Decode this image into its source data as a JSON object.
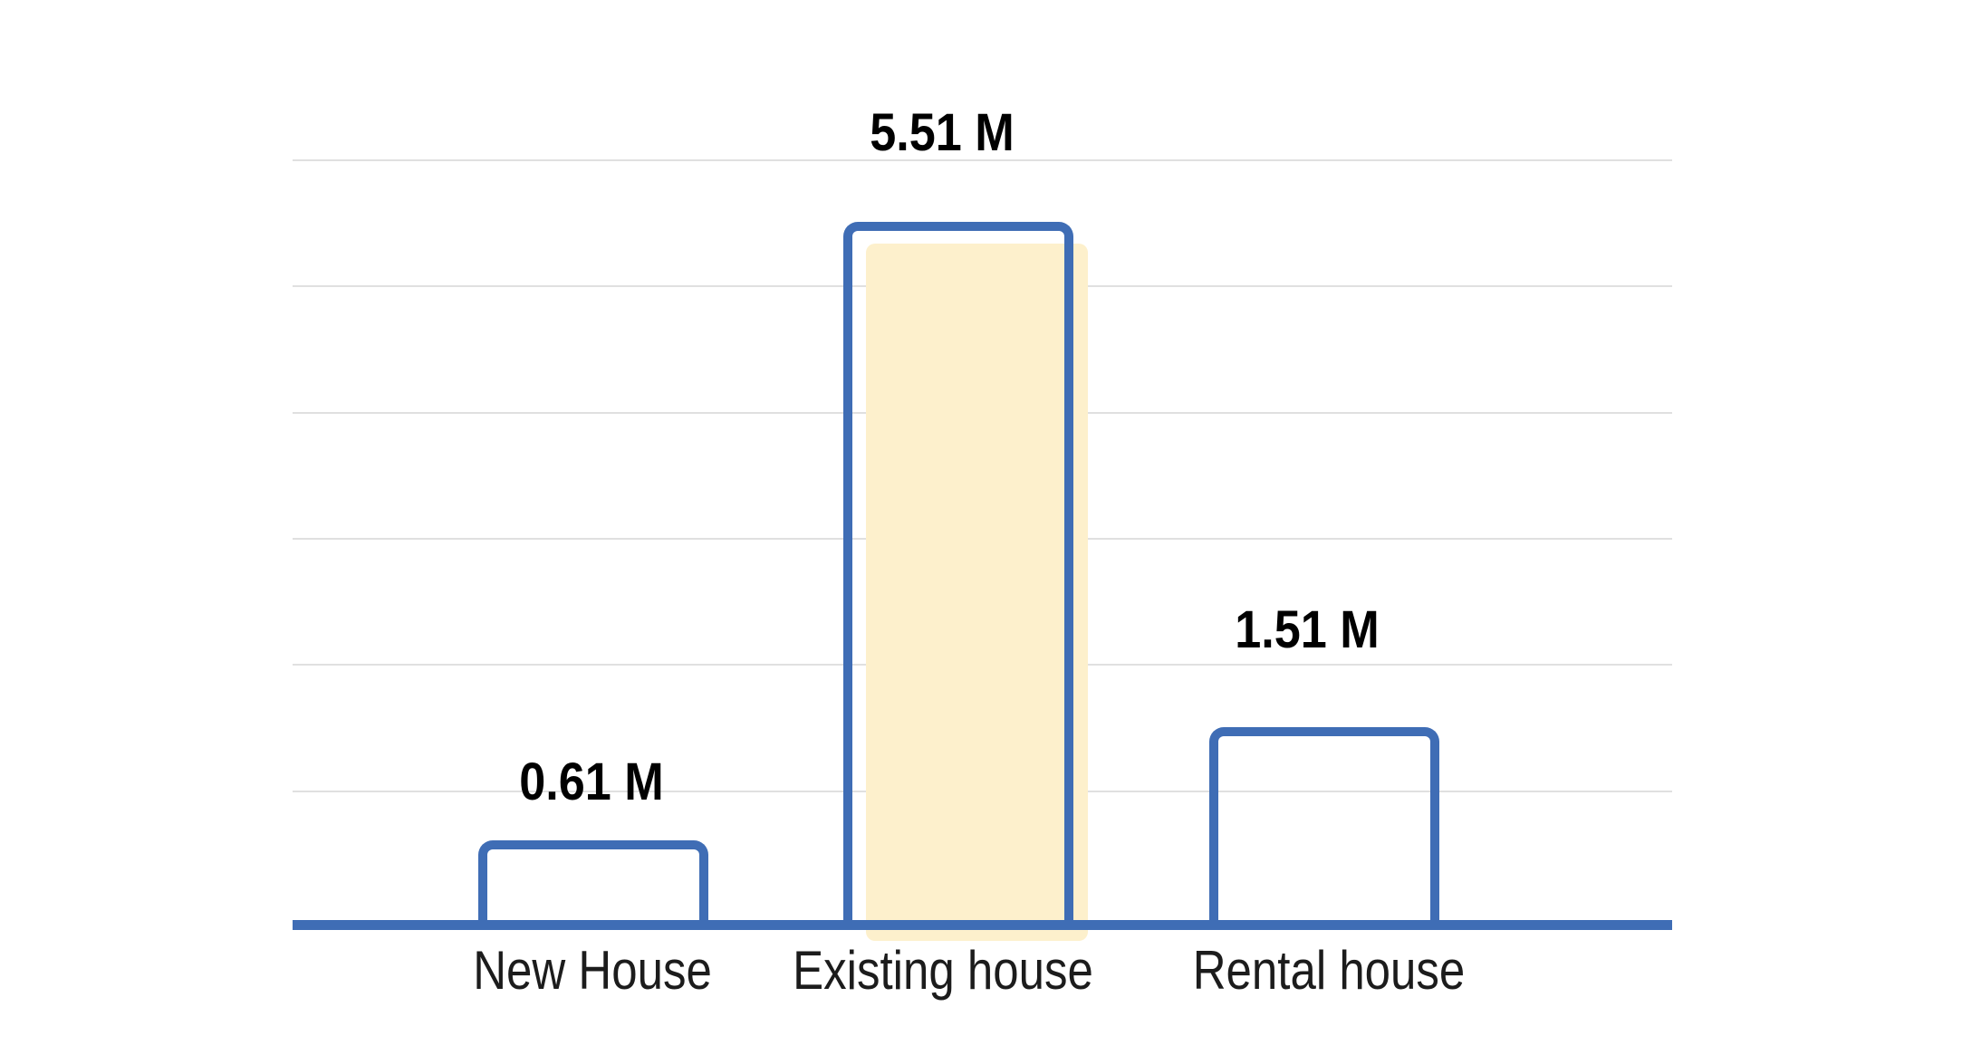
{
  "chart_data": {
    "type": "bar",
    "title": "",
    "xlabel": "",
    "ylabel": "",
    "categories": [
      "New House",
      "Existing house",
      "Rental house"
    ],
    "values": [
      0.61,
      5.51,
      1.51
    ],
    "value_labels": [
      "0.61 M",
      "5.51 M",
      "1.51 M"
    ],
    "unit": "M",
    "ylim": [
      0,
      6
    ],
    "gridline_values": [
      1,
      2,
      3,
      4,
      5,
      6
    ],
    "grid": "horizontal",
    "legend": "none",
    "y_axis_tick_labels_visible": false,
    "highlighted_category": "Existing house",
    "bar_style": "outlined-transparent-fill",
    "colors": {
      "bar_outline": "#3F6DB5",
      "axis_line": "#3F6DB5",
      "highlight_fill": "#FDF0CC",
      "gridline": "#E0E0E0",
      "value_label_text": "#000000",
      "category_label_text": "#1C1C1C",
      "background": "#FFFFFF"
    }
  }
}
